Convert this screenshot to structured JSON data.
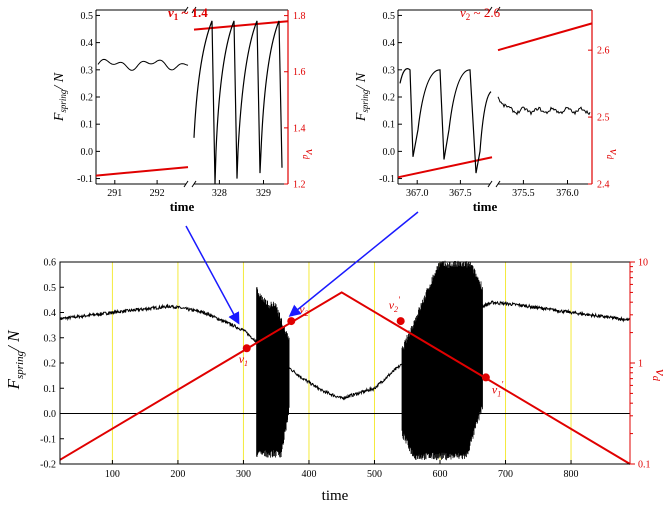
{
  "colors": {
    "black": "#000000",
    "red": "#e00000",
    "blue": "#1a1aff",
    "yellow": "#ffff66"
  },
  "chart_data": [
    {
      "id": "main",
      "type": "line",
      "xlabel": "time",
      "ylabel_main": "F",
      "ylabel_sub": "spring",
      "ylabel_unit": "/ N",
      "xlim": [
        20,
        890
      ],
      "ylim": [
        -0.2,
        0.6
      ],
      "xticks": [
        100,
        200,
        300,
        400,
        500,
        600,
        700,
        800
      ],
      "yticks": [
        -0.2,
        -0.1,
        0.0,
        0.1,
        0.2,
        0.3,
        0.4,
        0.5,
        0.6
      ],
      "y2label": "v_d",
      "y2scale": "log",
      "y2lim": [
        0.1,
        10
      ],
      "y2ticks": [
        {
          "value": 0.1,
          "label": "0.1"
        },
        {
          "value": 1,
          "label": "1"
        },
        {
          "value": 10,
          "label": "10"
        }
      ],
      "vertical_lines_x": [
        100,
        200,
        300,
        400,
        500,
        600,
        700,
        800
      ],
      "velocity_series": {
        "name": "v_d",
        "x": [
          20,
          450,
          890
        ],
        "y": [
          0.11,
          5.0,
          0.1
        ]
      },
      "force_envelope_x": [
        20,
        100,
        190,
        240,
        300,
        340,
        390,
        420,
        450,
        500,
        530,
        640,
        680,
        720,
        800,
        890
      ],
      "force_envelope_y": [
        0.375,
        0.4,
        0.425,
        0.4,
        0.33,
        0.24,
        0.14,
        0.09,
        0.06,
        0.1,
        0.17,
        0.4,
        0.44,
        0.43,
        0.4,
        0.37
      ],
      "stick_slip_regions": [
        {
          "x_start": 320,
          "x_end": 370,
          "y_min": -0.16,
          "y_max": 0.49
        },
        {
          "x_start": 542,
          "x_end": 665,
          "y_min": -0.17,
          "y_max": 0.59
        }
      ],
      "points": [
        {
          "label": "v",
          "sub": "1",
          "prime": "",
          "x": 305,
          "v": 1.4
        },
        {
          "label": "v",
          "sub": "2",
          "prime": "",
          "x": 373,
          "v": 2.6
        },
        {
          "label": "v",
          "sub": "2",
          "prime": "'",
          "x": 540,
          "v": 2.6
        },
        {
          "label": "v",
          "sub": "1",
          "prime": "'",
          "x": 670,
          "v": 0.72
        }
      ]
    },
    {
      "id": "inset1",
      "type": "line",
      "annotation": "v",
      "annotation_sub": "1",
      "annotation_value": " ~ 1.4",
      "xlabel": "time",
      "ylabel_main": "F",
      "ylabel_sub": "spring",
      "ylabel_unit": "/ N",
      "ylim": [
        -0.12,
        0.52
      ],
      "yticks": [
        -0.1,
        0.0,
        0.1,
        0.2,
        0.3,
        0.4,
        0.5
      ],
      "xtick_labels": [
        "291",
        "292",
        "328",
        "329"
      ],
      "y2label": "v_d",
      "y2lim": [
        1.2,
        1.82
      ],
      "y2ticks": [
        1.2,
        1.4,
        1.6,
        1.8
      ],
      "velocity_left": {
        "x": [
          290.2,
          293.1
        ],
        "y": [
          1.23,
          1.26
        ]
      },
      "velocity_right": {
        "x": [
          327.4,
          329.9
        ],
        "y": [
          1.75,
          1.78
        ]
      },
      "force_left_level": 0.32,
      "force_right_peaks": 0.48,
      "force_right_troughs": -0.12
    },
    {
      "id": "inset2",
      "type": "line",
      "annotation": "v",
      "annotation_sub": "2",
      "annotation_value": " ~ 2.6",
      "xlabel": "time",
      "ylabel_main": "F",
      "ylabel_sub": "spring",
      "ylabel_unit": "/ N",
      "ylim": [
        -0.12,
        0.52
      ],
      "yticks": [
        -0.1,
        0.0,
        0.1,
        0.2,
        0.3,
        0.4,
        0.5
      ],
      "xtick_labels": [
        "367.0",
        "367.5",
        "375.5",
        "376.0"
      ],
      "y2label": "v_d",
      "y2lim": [
        2.4,
        2.66
      ],
      "y2ticks": [
        2.4,
        2.5,
        2.6
      ],
      "velocity_left": {
        "x": [
          366.6,
          368.1
        ],
        "y": [
          2.41,
          2.44
        ]
      },
      "velocity_right": {
        "x": [
          375.1,
          376.4
        ],
        "y": [
          2.6,
          2.64
        ]
      },
      "force_right_level": 0.15,
      "force_left_peaks": 0.3,
      "force_left_troughs": -0.03
    }
  ]
}
